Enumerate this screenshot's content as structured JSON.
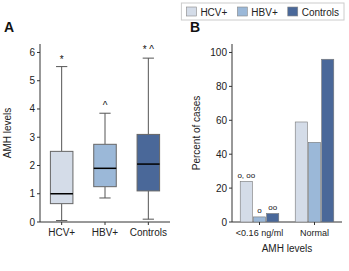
{
  "chart_data": [
    {
      "type": "box",
      "title": "A",
      "categories": [
        "HCV+",
        "HBV+",
        "Controls"
      ],
      "boxes": [
        {
          "whislo": 0.05,
          "q1": 0.65,
          "med": 1.0,
          "q3": 2.5,
          "whishi": 5.5
        },
        {
          "whislo": 0.85,
          "q1": 1.25,
          "med": 1.9,
          "q3": 2.75,
          "whishi": 3.85
        },
        {
          "whislo": 0.1,
          "q1": 1.1,
          "med": 2.05,
          "q3": 3.1,
          "whishi": 5.8
        }
      ],
      "colors": [
        "#d4dce8",
        "#9bb8d8",
        "#4a6899"
      ],
      "annotations": [
        {
          "text": "*",
          "category": "HCV+",
          "y": 5.6
        },
        {
          "text": "^",
          "category": "HBV+",
          "y": 3.95
        },
        {
          "text": "* ^",
          "category": "Controls",
          "y": 5.95
        }
      ],
      "ylabel": "AMH levels",
      "ylim": [
        0,
        6.3
      ],
      "yticks": [
        0,
        1,
        2,
        3,
        4,
        5,
        6
      ]
    },
    {
      "type": "bar",
      "title": "B",
      "categories": [
        "<0.16 ng/ml",
        "Normal"
      ],
      "series": [
        {
          "name": "HCV+",
          "color": "#d4dce8",
          "values": [
            24,
            59
          ]
        },
        {
          "name": "HBV+",
          "color": "#9bb8d8",
          "values": [
            3,
            47
          ]
        },
        {
          "name": "Controls",
          "color": "#4a6899",
          "values": [
            5,
            96
          ]
        }
      ],
      "annotations": [
        {
          "text": "o, oo",
          "category": "<0.16 ng/ml",
          "series": "HCV+",
          "y": 25.5
        },
        {
          "text": "o",
          "category": "<0.16 ng/ml",
          "series": "HBV+",
          "y": 4.5
        },
        {
          "text": "oo",
          "category": "<0.16 ng/ml",
          "series": "Controls",
          "y": 6.5
        }
      ],
      "xlabel": "AMH levels",
      "ylabel": "Percent of cases",
      "ylim": [
        0,
        105
      ],
      "yticks": [
        0,
        20,
        40,
        60,
        80,
        100
      ],
      "legend": "top"
    }
  ]
}
